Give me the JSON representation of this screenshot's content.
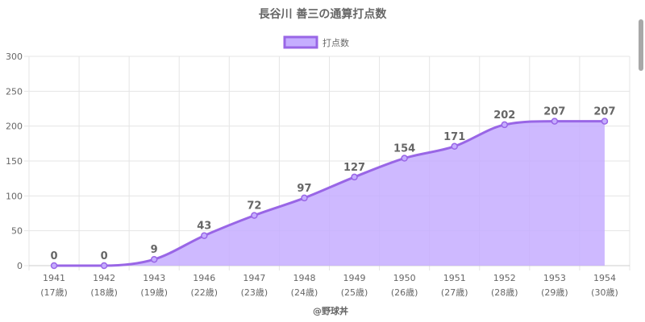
{
  "chart_data": {
    "type": "area",
    "title": "長谷川 善三の通算打点数",
    "legend": {
      "label": "打点数",
      "placement": "top-center"
    },
    "categories": [
      {
        "year": "1941",
        "age": "(17歳)"
      },
      {
        "year": "1942",
        "age": "(18歳)"
      },
      {
        "year": "1943",
        "age": "(19歳)"
      },
      {
        "year": "1946",
        "age": "(22歳)"
      },
      {
        "year": "1947",
        "age": "(23歳)"
      },
      {
        "year": "1948",
        "age": "(24歳)"
      },
      {
        "year": "1949",
        "age": "(25歳)"
      },
      {
        "year": "1950",
        "age": "(26歳)"
      },
      {
        "year": "1951",
        "age": "(27歳)"
      },
      {
        "year": "1952",
        "age": "(28歳)"
      },
      {
        "year": "1953",
        "age": "(29歳)"
      },
      {
        "year": "1954",
        "age": "(30歳)"
      }
    ],
    "values": [
      0,
      0,
      9,
      43,
      72,
      97,
      127,
      154,
      171,
      202,
      207,
      207
    ],
    "ylim": [
      0,
      300
    ],
    "yticks": [
      "0",
      "50",
      "100",
      "150",
      "200",
      "250",
      "300"
    ],
    "grid": true,
    "colors": {
      "line": "#9966e6",
      "fill": "#c5adff",
      "grid": "#e5e5e5",
      "text": "#666666"
    }
  },
  "credit": "@野球丼"
}
